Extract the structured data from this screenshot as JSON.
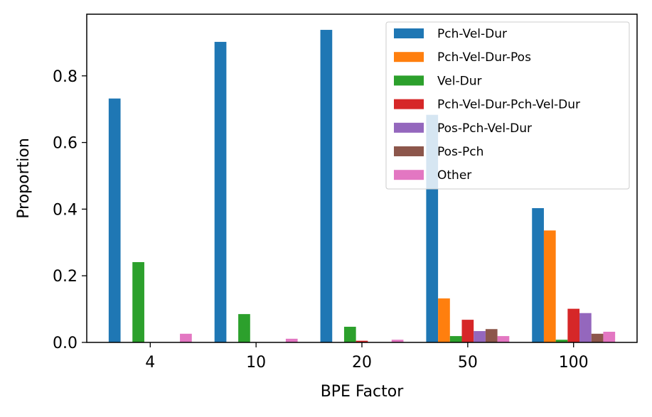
{
  "chart_data": {
    "type": "bar",
    "title": "",
    "xlabel": "BPE Factor",
    "ylabel": "Proportion",
    "categories": [
      "4",
      "10",
      "20",
      "50",
      "100"
    ],
    "ylim": [
      0,
      0.985
    ],
    "yticks": [
      "0.0",
      "0.2",
      "0.4",
      "0.6",
      "0.8"
    ],
    "legend_position": "top-right",
    "grid": false,
    "series": [
      {
        "name": "Pch-Vel-Dur",
        "color": "#1f77b4",
        "values": [
          0.732,
          0.902,
          0.938,
          0.683,
          0.403
        ]
      },
      {
        "name": "Pch-Vel-Dur-Pos",
        "color": "#ff7f0e",
        "values": [
          0.0,
          0.0,
          0.0,
          0.132,
          0.336
        ]
      },
      {
        "name": "Vel-Dur",
        "color": "#2ca02c",
        "values": [
          0.241,
          0.085,
          0.047,
          0.019,
          0.008
        ]
      },
      {
        "name": "Pch-Vel-Dur-Pch-Vel-Dur",
        "color": "#d62728",
        "values": [
          0.0,
          0.0,
          0.005,
          0.068,
          0.101
        ]
      },
      {
        "name": "Pos-Pch-Vel-Dur",
        "color": "#9467bd",
        "values": [
          0.0,
          0.0,
          0.0,
          0.034,
          0.088
        ]
      },
      {
        "name": "Pos-Pch",
        "color": "#8c564b",
        "values": [
          0.0,
          0.0,
          0.0,
          0.04,
          0.026
        ]
      },
      {
        "name": "Other",
        "color": "#e377c2",
        "values": [
          0.026,
          0.011,
          0.008,
          0.019,
          0.032
        ]
      }
    ]
  }
}
